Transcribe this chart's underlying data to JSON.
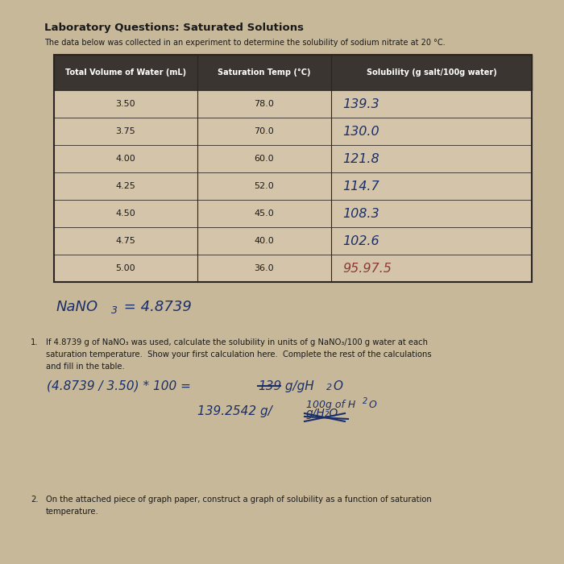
{
  "title": "Laboratory Questions: Saturated Solutions",
  "subtitle": "The data below was collected in an experiment to determine the solubility of sodium nitrate at 20 °C.",
  "col_headers": [
    "Total Volume of Water (mL)",
    "Saturation Temp (°C)",
    "Solubility (g salt/100g water)"
  ],
  "rows_col0": [
    "3.50",
    "3.75",
    "4.00",
    "4.25",
    "4.50",
    "4.75",
    "5.00"
  ],
  "rows_col1": [
    "78.0",
    "70.0",
    "60.0",
    "52.0",
    "45.0",
    "40.0",
    "36.0"
  ],
  "rows_col2": [
    "139.3",
    "130.0",
    "121.8",
    "114.7",
    "108.3",
    "102.6",
    "95.97.5"
  ],
  "bg_color": "#c8b89a",
  "table_bg": "#d4c4aa",
  "header_bg": "#3a3530",
  "header_text": "#ffffff",
  "body_text": "#1a1a1a",
  "hw_color": "#1a2f6a",
  "hw_last_color": "#8b3a3a",
  "border_color": "#2a2520",
  "title_size": 9.5,
  "subtitle_size": 7.0,
  "header_size": 7.0,
  "body_size": 8.0,
  "hw_size": 11.5,
  "q_text_size": 7.2,
  "calc_size": 11.0
}
